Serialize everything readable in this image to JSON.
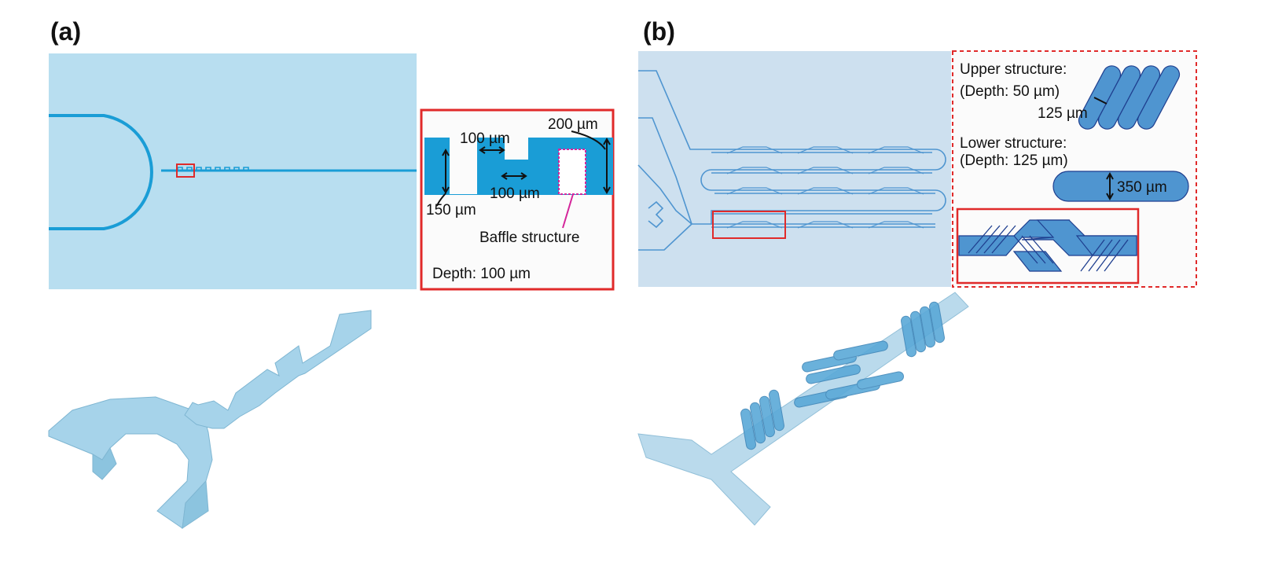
{
  "panel_a": {
    "label": "(a)",
    "inset": {
      "dim_200": "200 µm",
      "dim_100_top": "100 µm",
      "dim_100_bottom": "100 µm",
      "dim_150": "150 µm",
      "baffle": "Baffle structure",
      "depth": "Depth: 100 µm"
    }
  },
  "panel_b": {
    "label": "(b)",
    "inset": {
      "upper_title": "Upper structure:",
      "upper_depth": "(Depth: 50 µm)",
      "dim_125": "125 µm",
      "lower_title": "Lower structure:",
      "lower_depth": "(Depth: 125 µm)",
      "dim_350": "350 µm"
    }
  },
  "colors": {
    "chip_bg_a": "#b8def0",
    "channel_a": "#1a9dd6",
    "chip_bg_b": "#cde0ef",
    "channel_b": "#4f95d0",
    "highlight_red": "#e02a2a",
    "baffle_magenta": "#d4259a",
    "render_3d": "#a6d3ea"
  }
}
